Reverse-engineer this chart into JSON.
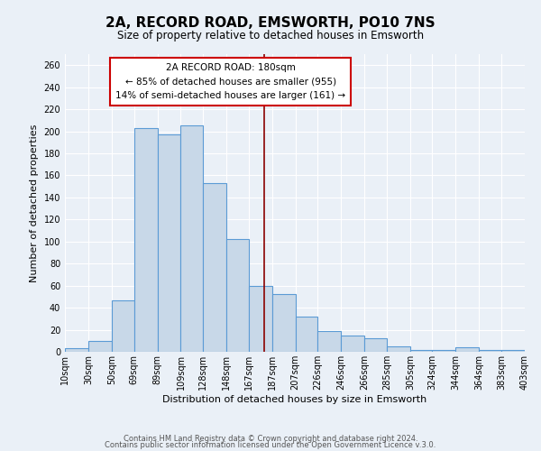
{
  "title": "2A, RECORD ROAD, EMSWORTH, PO10 7NS",
  "subtitle": "Size of property relative to detached houses in Emsworth",
  "xlabel": "Distribution of detached houses by size in Emsworth",
  "ylabel": "Number of detached properties",
  "bar_color": "#c8d8e8",
  "bar_edge_color": "#5b9bd5",
  "background_color": "#eaf0f7",
  "grid_color": "#ffffff",
  "vline_x": 180,
  "vline_color": "#8b0000",
  "annotation_title": "2A RECORD ROAD: 180sqm",
  "annotation_line1": "← 85% of detached houses are smaller (955)",
  "annotation_line2": "14% of semi-detached houses are larger (161) →",
  "bin_edges": [
    10,
    30,
    50,
    69,
    89,
    109,
    128,
    148,
    167,
    187,
    207,
    226,
    246,
    266,
    285,
    305,
    324,
    344,
    364,
    383,
    403
  ],
  "bin_labels": [
    "10sqm",
    "30sqm",
    "50sqm",
    "69sqm",
    "89sqm",
    "109sqm",
    "128sqm",
    "148sqm",
    "167sqm",
    "187sqm",
    "207sqm",
    "226sqm",
    "246sqm",
    "266sqm",
    "285sqm",
    "305sqm",
    "324sqm",
    "344sqm",
    "364sqm",
    "383sqm",
    "403sqm"
  ],
  "bar_heights": [
    3,
    10,
    47,
    203,
    197,
    205,
    153,
    102,
    60,
    52,
    32,
    19,
    15,
    12,
    5,
    2,
    2,
    4,
    2,
    2
  ],
  "ylim": [
    0,
    270
  ],
  "yticks": [
    0,
    20,
    40,
    60,
    80,
    100,
    120,
    140,
    160,
    180,
    200,
    220,
    240,
    260
  ],
  "footer1": "Contains HM Land Registry data © Crown copyright and database right 2024.",
  "footer2": "Contains public sector information licensed under the Open Government Licence v.3.0."
}
